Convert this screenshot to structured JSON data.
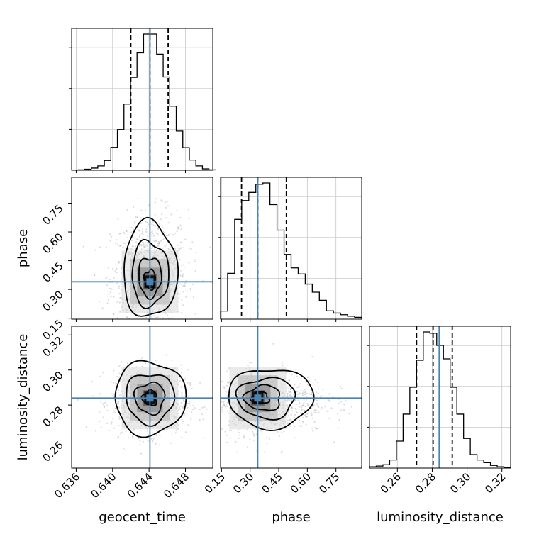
{
  "chart_data": {
    "type": "corner",
    "parameters": [
      "geocent_time",
      "phase",
      "luminosity_distance"
    ],
    "truths": {
      "geocent_time": 0.6441,
      "phase": 0.34,
      "luminosity_distance": 0.284
    },
    "quantiles": {
      "geocent_time": [
        0.642,
        0.6441,
        0.6461
      ],
      "phase": [
        0.255,
        0.34,
        0.49
      ],
      "luminosity_distance": [
        0.271,
        0.2805,
        0.2915
      ]
    },
    "ranges": {
      "geocent_time": [
        0.6355,
        0.651
      ],
      "phase": [
        0.145,
        0.885
      ],
      "luminosity_distance": [
        0.244,
        0.325
      ]
    },
    "ticks": {
      "geocent_time": [
        "0.636",
        "0.640",
        "0.644",
        "0.648"
      ],
      "phase": [
        "0.15",
        "0.30",
        "0.45",
        "0.60",
        "0.75"
      ],
      "luminosity_distance": [
        "0.26",
        "0.28",
        "0.30",
        "0.32"
      ]
    },
    "histograms": {
      "geocent_time": {
        "edges": [
          0.6355,
          0.6513
        ],
        "counts": [
          1,
          3,
          8,
          16,
          32,
          72,
          168,
          298,
          486,
          682,
          862,
          1000,
          1000,
          852,
          685,
          470,
          287,
          166,
          75,
          32,
          10,
          3
        ]
      },
      "phase": {
        "edges": [
          0.145,
          0.885
        ],
        "counts": [
          60,
          340,
          740,
          880,
          940,
          1000,
          1010,
          850,
          660,
          480,
          380,
          335,
          260,
          200,
          140,
          62,
          45,
          33,
          22,
          14
        ]
      },
      "luminosity_distance": {
        "edges": [
          0.244,
          0.325
        ],
        "counts": [
          10,
          15,
          25,
          60,
          200,
          400,
          600,
          800,
          1010,
          1000,
          910,
          810,
          600,
          400,
          220,
          100,
          60,
          40,
          20,
          10,
          5
        ]
      }
    },
    "grid": true
  }
}
